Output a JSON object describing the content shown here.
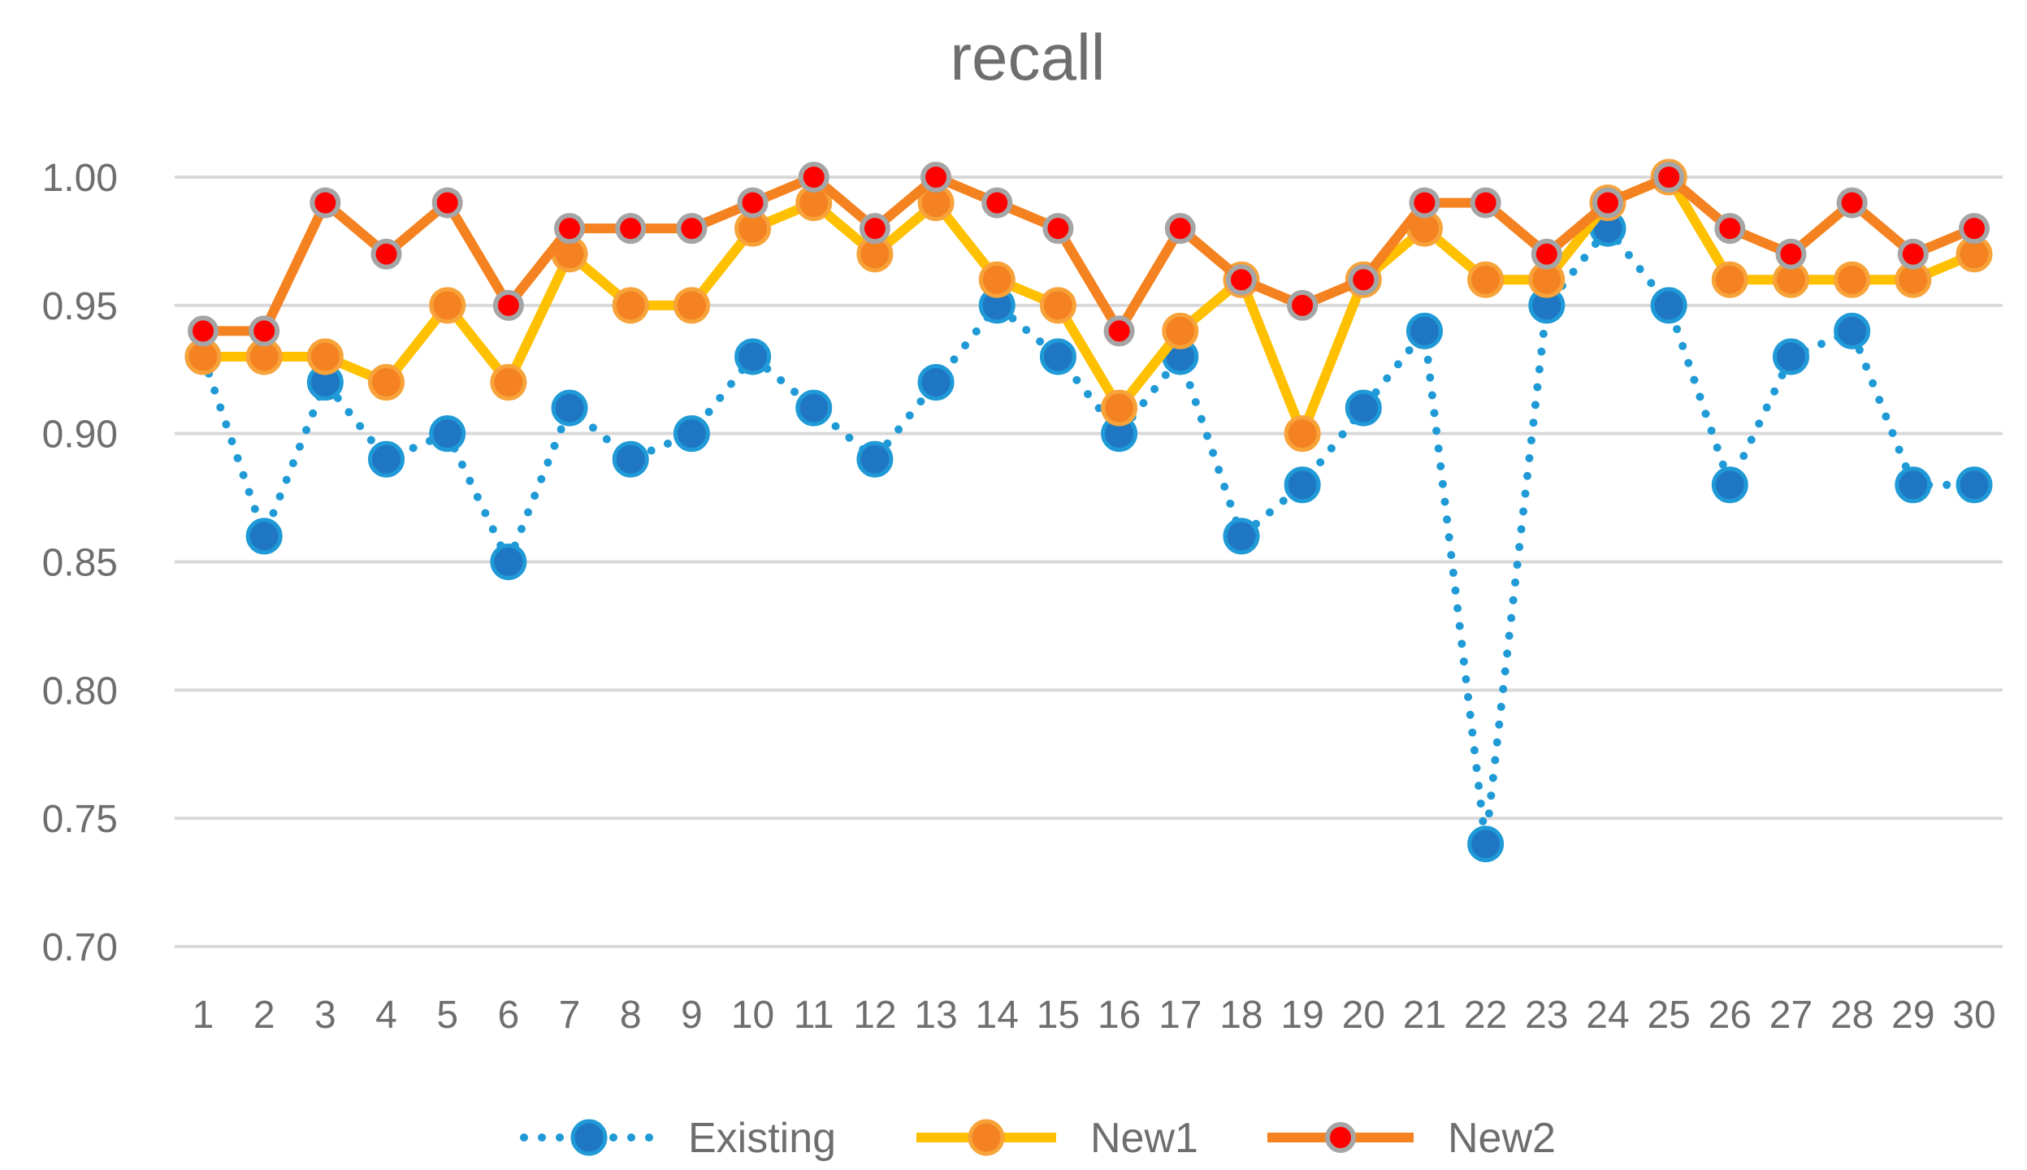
{
  "chart_data": {
    "type": "line",
    "title": "recall",
    "xlabel": "",
    "ylabel": "",
    "categories": [
      "1",
      "2",
      "3",
      "4",
      "5",
      "6",
      "7",
      "8",
      "9",
      "10",
      "11",
      "12",
      "13",
      "14",
      "15",
      "16",
      "17",
      "18",
      "19",
      "20",
      "21",
      "22",
      "23",
      "24",
      "25",
      "26",
      "27",
      "28",
      "29",
      "30"
    ],
    "yticks": [
      "0.70",
      "0.75",
      "0.80",
      "0.85",
      "0.90",
      "0.95",
      "1.00"
    ],
    "ylim": [
      0.7,
      1.0
    ],
    "grid": true,
    "legend_position": "bottom",
    "series": [
      {
        "name": "Existing",
        "style": "dotted",
        "line_color": "#1f9ad6",
        "marker_fill": "#1f77c4",
        "marker_stroke": "#1f9ad6",
        "values": [
          0.93,
          0.86,
          0.92,
          0.89,
          0.9,
          0.85,
          0.91,
          0.89,
          0.9,
          0.93,
          0.91,
          0.89,
          0.92,
          0.95,
          0.93,
          0.9,
          0.93,
          0.86,
          0.88,
          0.91,
          0.94,
          0.74,
          0.95,
          0.98,
          0.95,
          0.88,
          0.93,
          0.94,
          0.88,
          0.88
        ]
      },
      {
        "name": "New1",
        "style": "solid",
        "line_color": "#ffc000",
        "marker_fill": "#f58220",
        "marker_stroke": "#f7a33a",
        "values": [
          0.93,
          0.93,
          0.93,
          0.92,
          0.95,
          0.92,
          0.97,
          0.95,
          0.95,
          0.98,
          0.99,
          0.97,
          0.99,
          0.96,
          0.95,
          0.91,
          0.94,
          0.96,
          0.9,
          0.96,
          0.98,
          0.96,
          0.96,
          0.99,
          1.0,
          0.96,
          0.96,
          0.96,
          0.96,
          0.97
        ]
      },
      {
        "name": "New2",
        "style": "solid",
        "line_color": "#f58220",
        "marker_fill": "#ff0000",
        "marker_stroke": "#a5a5a5",
        "values": [
          0.94,
          0.94,
          0.99,
          0.97,
          0.99,
          0.95,
          0.98,
          0.98,
          0.98,
          0.99,
          1.0,
          0.98,
          1.0,
          0.99,
          0.98,
          0.94,
          0.98,
          0.96,
          0.95,
          0.96,
          0.99,
          0.99,
          0.97,
          0.99,
          1.0,
          0.98,
          0.97,
          0.99,
          0.97,
          0.98
        ]
      }
    ]
  }
}
